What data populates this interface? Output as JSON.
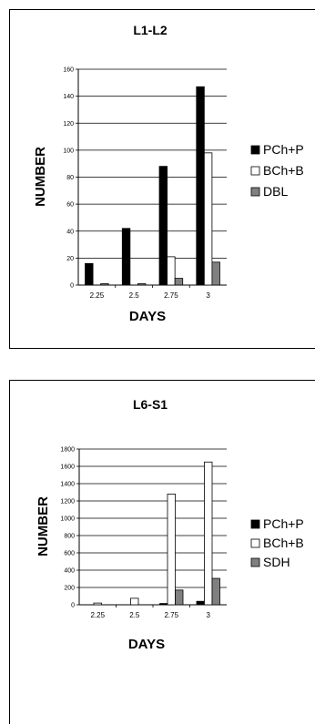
{
  "chart_data": [
    {
      "type": "bar",
      "title": "L1-L2",
      "xlabel": "DAYS",
      "ylabel": "NUMBER",
      "categories": [
        "2.25",
        "2.5",
        "2.75",
        "3"
      ],
      "ylim": [
        0,
        160
      ],
      "yticks": [
        0,
        20,
        40,
        60,
        80,
        100,
        120,
        140,
        160
      ],
      "grid": true,
      "legend": "right",
      "series": [
        {
          "name": "PCh+P",
          "color": "#000000",
          "values": [
            16,
            42,
            88,
            147
          ]
        },
        {
          "name": "BCh+B",
          "color": "#ffffff",
          "values": [
            0,
            0,
            21,
            98
          ]
        },
        {
          "name": "DBL",
          "color": "#808080",
          "values": [
            1,
            1,
            5,
            17
          ]
        }
      ]
    },
    {
      "type": "bar",
      "title": "L6-S1",
      "xlabel": "DAYS",
      "ylabel": "NUMBER",
      "categories": [
        "2.25",
        "2.5",
        "2.75",
        "3"
      ],
      "ylim": [
        0,
        1800
      ],
      "yticks": [
        0,
        200,
        400,
        600,
        800,
        1000,
        1200,
        1400,
        1600,
        1800
      ],
      "grid": true,
      "legend": "right",
      "series": [
        {
          "name": "PCh+P",
          "color": "#000000",
          "values": [
            0,
            0,
            15,
            40
          ]
        },
        {
          "name": "BCh+B",
          "color": "#ffffff",
          "values": [
            20,
            75,
            1280,
            1650
          ]
        },
        {
          "name": "SDH",
          "color": "#808080",
          "values": [
            0,
            0,
            170,
            305
          ]
        }
      ]
    }
  ]
}
